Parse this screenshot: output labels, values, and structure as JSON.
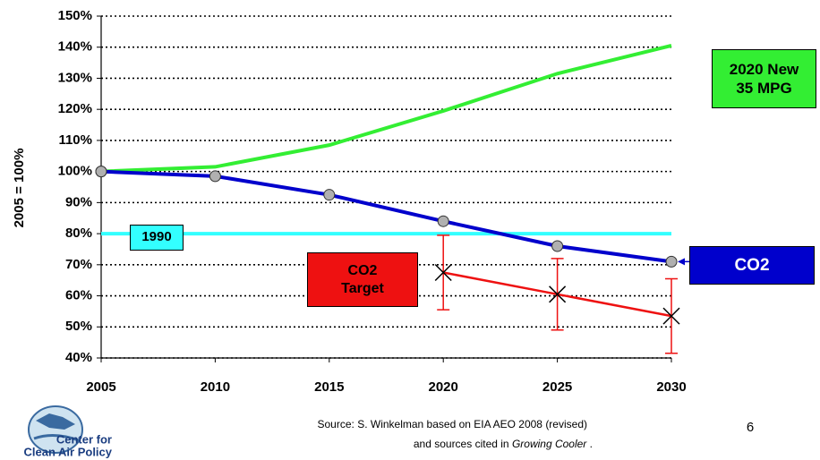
{
  "chart_data": {
    "type": "line",
    "y_label": "2005 = 100%",
    "x": [
      2005,
      2010,
      2015,
      2020,
      2025,
      2030
    ],
    "xlim": [
      2005,
      2030
    ],
    "xticks": [
      2005,
      2010,
      2015,
      2020,
      2025,
      2030
    ],
    "ylim": [
      40,
      150
    ],
    "yticks": [
      {
        "value": 40,
        "label": "40%"
      },
      {
        "value": 50,
        "label": "50%"
      },
      {
        "value": 60,
        "label": "60%"
      },
      {
        "value": 70,
        "label": "70%"
      },
      {
        "value": 80,
        "label": "80%"
      },
      {
        "value": 90,
        "label": "90%"
      },
      {
        "value": 100,
        "label": "100%"
      },
      {
        "value": 110,
        "label": "110%"
      },
      {
        "value": 120,
        "label": "120%"
      },
      {
        "value": 130,
        "label": "130%"
      },
      {
        "value": 140,
        "label": "140%"
      },
      {
        "value": 150,
        "label": "150%"
      }
    ],
    "grid": true,
    "series": [
      {
        "name": "2020 New 35 MPG",
        "color": "#33ee33",
        "values": [
          100,
          101.5,
          108.5,
          119.5,
          131.5,
          140.5
        ]
      },
      {
        "name": "CO2",
        "color": "#0000cc",
        "values": [
          100,
          98.5,
          92.5,
          84,
          76,
          71
        ]
      },
      {
        "name": "1990",
        "color": "#33ffff",
        "values": [
          80,
          80,
          80,
          80,
          80,
          80
        ]
      },
      {
        "name": "CO2 Target",
        "color": "#ee1111",
        "values": [
          null,
          null,
          null,
          67.5,
          60.5,
          53.5
        ],
        "errors": [
          null,
          null,
          null,
          12,
          11.5,
          12
        ]
      }
    ]
  },
  "footer": {
    "source_line1": "Source: S. Winkelman based on EIA AEO 2008 (revised)",
    "source_line2": "and sources cited in",
    "source_italic": "Growing Cooler",
    "source_end": ".",
    "page_number": "6",
    "logo_line1": "Center for",
    "logo_line2": "Clean Air Policy"
  }
}
